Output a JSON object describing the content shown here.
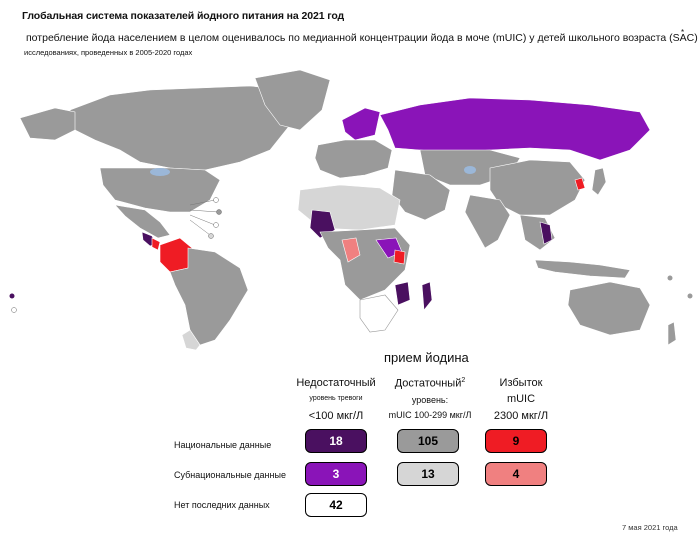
{
  "header": {
    "title": "Глобальная система показателей йодного питания на 2021 год",
    "subtitle": "потребление йода населением в целом оценивалось по медианной концентрации йода в моче (mUIC) у детей школьного возраста (SAC) в",
    "subtitle_mark": "*",
    "subtitle2": "исследованиях, проведенных в 2005-2020 годах"
  },
  "legend": {
    "title": "прием йодина",
    "columns": [
      {
        "head": "Недостаточный",
        "sub": "уровень тревоги",
        "range": "<100 мкг/Л"
      },
      {
        "head": "Достаточный",
        "sup": "2",
        "sub": "уровень:",
        "range": "mUIC 100-299 мкг/Л"
      },
      {
        "head": "Избыток",
        "sub": "mUIC",
        "range": "2300 мкг/Л"
      }
    ],
    "rows": [
      {
        "label": "Национальные данные",
        "values": [
          "18",
          "105",
          "9"
        ]
      },
      {
        "label": "Субнациональные данные",
        "values": [
          "3",
          "13",
          "4"
        ]
      },
      {
        "label": "Нет последних данных",
        "values": [
          "42"
        ]
      }
    ]
  },
  "colors": {
    "national_insufficient": "#4a1060",
    "subnational_insufficient": "#8a14b8",
    "national_adequate": "#9a9a9a",
    "subnational_adequate": "#d6d6d6",
    "national_excess": "#ef1c24",
    "subnational_excess": "#f08080",
    "no_data": "#ffffff",
    "water": "#9bb7d8"
  },
  "footer": {
    "date": "7 мая 2021 года"
  }
}
